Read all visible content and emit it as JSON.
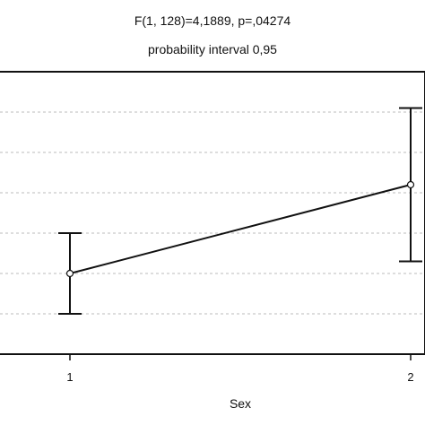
{
  "chart_data": {
    "type": "line",
    "title": "F(1, 128)=4,1889, p=,04274",
    "subtitle": "probability interval 0,95",
    "xlabel": "Sex",
    "ylabel": "",
    "categories": [
      "1",
      "2"
    ],
    "series": [
      {
        "values": [
          2.0,
          4.2
        ],
        "lower": [
          1.0,
          2.3
        ],
        "upper": [
          3.0,
          6.1
        ]
      }
    ],
    "ylim": [
      0,
      7
    ],
    "yticks": [
      1,
      2,
      3,
      4,
      5,
      6
    ],
    "ytick_labels_visible": false,
    "grid": "horizontal",
    "grid_style": "dashed",
    "marker": "open-circle",
    "error_bars": true,
    "legend": "none",
    "colors": {
      "line": "#111111",
      "grid": "#bbbbbb",
      "frame": "#111111",
      "marker_fill": "#ffffff"
    }
  }
}
